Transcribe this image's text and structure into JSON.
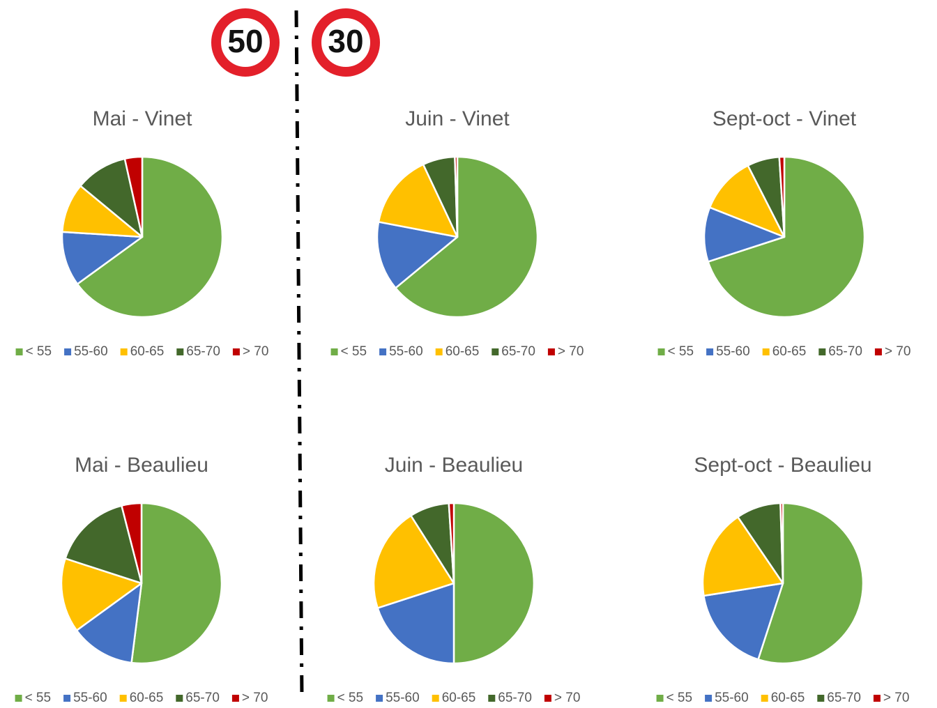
{
  "signs": [
    "50",
    "30"
  ],
  "chart_data": [
    {
      "type": "pie",
      "title": "Mai - Vinet",
      "categories": [
        "< 55",
        "55-60",
        "60-65",
        "65-70",
        "> 70"
      ],
      "values": [
        65,
        11,
        10,
        10.5,
        3.5
      ],
      "colors": [
        "#70ad47",
        "#4472c4",
        "#ffc000",
        "#43682b",
        "#c00000"
      ]
    },
    {
      "type": "pie",
      "title": "Juin - Vinet",
      "categories": [
        "< 55",
        "55-60",
        "60-65",
        "65-70",
        "> 70"
      ],
      "values": [
        64,
        14,
        15,
        6.5,
        0.5
      ],
      "colors": [
        "#70ad47",
        "#4472c4",
        "#ffc000",
        "#43682b",
        "#c00000"
      ]
    },
    {
      "type": "pie",
      "title": "Sept-oct - Vinet",
      "categories": [
        "< 55",
        "55-60",
        "60-65",
        "65-70",
        "> 70"
      ],
      "values": [
        70,
        11,
        11.5,
        6.5,
        1
      ],
      "colors": [
        "#70ad47",
        "#4472c4",
        "#ffc000",
        "#43682b",
        "#c00000"
      ]
    },
    {
      "type": "pie",
      "title": "Mai - Beaulieu",
      "categories": [
        "< 55",
        "55-60",
        "60-65",
        "65-70",
        "> 70"
      ],
      "values": [
        52,
        13,
        15,
        16,
        4
      ],
      "colors": [
        "#70ad47",
        "#4472c4",
        "#ffc000",
        "#43682b",
        "#c00000"
      ]
    },
    {
      "type": "pie",
      "title": "Juin - Beaulieu",
      "categories": [
        "< 55",
        "55-60",
        "60-65",
        "65-70",
        "> 70"
      ],
      "values": [
        50,
        20,
        21,
        8,
        1
      ],
      "colors": [
        "#70ad47",
        "#4472c4",
        "#ffc000",
        "#43682b",
        "#c00000"
      ]
    },
    {
      "type": "pie",
      "title": "Sept-oct - Beaulieu",
      "categories": [
        "< 55",
        "55-60",
        "60-65",
        "65-70",
        "> 70"
      ],
      "values": [
        55,
        17.5,
        18,
        9,
        0.5
      ],
      "colors": [
        "#70ad47",
        "#4472c4",
        "#ffc000",
        "#43682b",
        "#c00000"
      ]
    }
  ]
}
